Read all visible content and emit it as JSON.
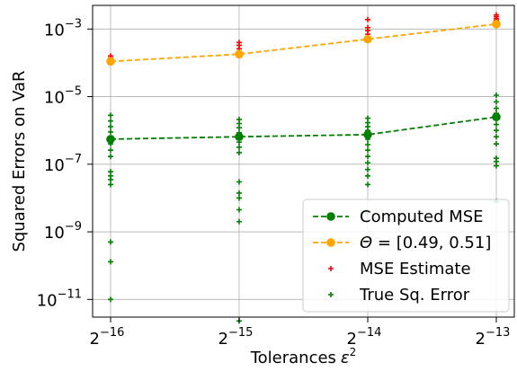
{
  "chart_data": {
    "type": "scatter",
    "xlabel": "Tolerances",
    "xlabel_symbol": "ε",
    "xlabel_exp": "2",
    "ylabel": "Squared Errors on VaR",
    "x_scale": "log2",
    "y_scale": "log10",
    "x": [
      1.52587890625e-05,
      3.0517578125e-05,
      6.103515625e-05,
      0.0001220703125
    ],
    "x_tick_base": "2",
    "x_tick_exponents": [
      "−16",
      "−15",
      "−14",
      "−13"
    ],
    "y_tick_base": "10",
    "y_tick_exponents": [
      "−11",
      "−9",
      "−7",
      "−5",
      "−3"
    ],
    "y_tick_values": [
      1e-11,
      1e-09,
      1e-07,
      1e-05,
      0.001
    ],
    "ylim": [
      3e-12,
      0.005
    ],
    "grid": true,
    "legend_position": "lower right",
    "series": [
      {
        "name": "Computed MSE",
        "kind": "line-marker",
        "color": "#008000",
        "linestyle": "dashed",
        "y": [
          5.5e-07,
          6.5e-07,
          7.5e-07,
          2.5e-06
        ]
      },
      {
        "name": "Θ = [0.49, 0.51]",
        "name_parts": {
          "symbol": "Θ",
          "rest": " = [0.49, 0.51]"
        },
        "kind": "line-marker",
        "color": "#FFA500",
        "linestyle": "dashed",
        "y": [
          0.00011,
          0.00018,
          0.0005,
          0.0014
        ]
      },
      {
        "name": "MSE Estimate",
        "kind": "plus",
        "color": "#FF0000",
        "points": [
          [
            0,
            0.00012
          ],
          [
            0,
            0.00014
          ],
          [
            0,
            0.00016
          ],
          [
            1,
            0.0002
          ],
          [
            1,
            0.00026
          ],
          [
            1,
            0.00033
          ],
          [
            1,
            0.0004
          ],
          [
            2,
            0.0005
          ],
          [
            2,
            0.0007
          ],
          [
            2,
            0.0009
          ],
          [
            2,
            0.0011
          ],
          [
            2,
            0.0019
          ],
          [
            3,
            0.0015
          ],
          [
            3,
            0.0018
          ],
          [
            3,
            0.002
          ],
          [
            3,
            0.0023
          ],
          [
            3,
            0.0026
          ]
        ]
      },
      {
        "name": "True Sq. Error",
        "kind": "plus",
        "color": "#008000",
        "points": [
          [
            0,
            2.8e-06
          ],
          [
            0,
            1.9e-06
          ],
          [
            0,
            1.3e-06
          ],
          [
            0,
            9e-07
          ],
          [
            0,
            6e-07
          ],
          [
            0,
            4e-07
          ],
          [
            0,
            2.6e-07
          ],
          [
            0,
            1.7e-07
          ],
          [
            0,
            6e-08
          ],
          [
            0,
            4.5e-08
          ],
          [
            0,
            3.5e-08
          ],
          [
            0,
            2.5e-08
          ],
          [
            0,
            5e-10
          ],
          [
            0,
            1.3e-10
          ],
          [
            0,
            1e-11
          ],
          [
            1,
            2.1e-06
          ],
          [
            1,
            1.6e-06
          ],
          [
            1,
            1.2e-06
          ],
          [
            1,
            8.5e-07
          ],
          [
            1,
            6.5e-07
          ],
          [
            1,
            4.5e-07
          ],
          [
            1,
            3.2e-07
          ],
          [
            1,
            2.2e-07
          ],
          [
            1,
            3e-08
          ],
          [
            1,
            1.4e-08
          ],
          [
            1,
            1e-08
          ],
          [
            1,
            4.5e-09
          ],
          [
            1,
            2e-09
          ],
          [
            1,
            2.3e-12
          ],
          [
            2,
            2.3e-06
          ],
          [
            2,
            1.7e-06
          ],
          [
            2,
            1.3e-06
          ],
          [
            2,
            1e-06
          ],
          [
            2,
            7.5e-07
          ],
          [
            2,
            5.5e-07
          ],
          [
            2,
            3.8e-07
          ],
          [
            2,
            2.6e-07
          ],
          [
            2,
            1.7e-07
          ],
          [
            2,
            1.1e-07
          ],
          [
            2,
            7e-08
          ],
          [
            2,
            4.5e-08
          ],
          [
            2,
            2.5e-08
          ],
          [
            2,
            3.8e-09
          ],
          [
            3,
            1.1e-05
          ],
          [
            3,
            7e-06
          ],
          [
            3,
            4.5e-06
          ],
          [
            3,
            3.2e-06
          ],
          [
            3,
            2.2e-06
          ],
          [
            3,
            1.5e-06
          ],
          [
            3,
            1e-06
          ],
          [
            3,
            6.5e-07
          ],
          [
            3,
            4e-07
          ],
          [
            3,
            1.5e-07
          ],
          [
            3,
            1.2e-07
          ],
          [
            3,
            9e-08
          ],
          [
            3,
            8e-09
          ]
        ]
      }
    ]
  }
}
